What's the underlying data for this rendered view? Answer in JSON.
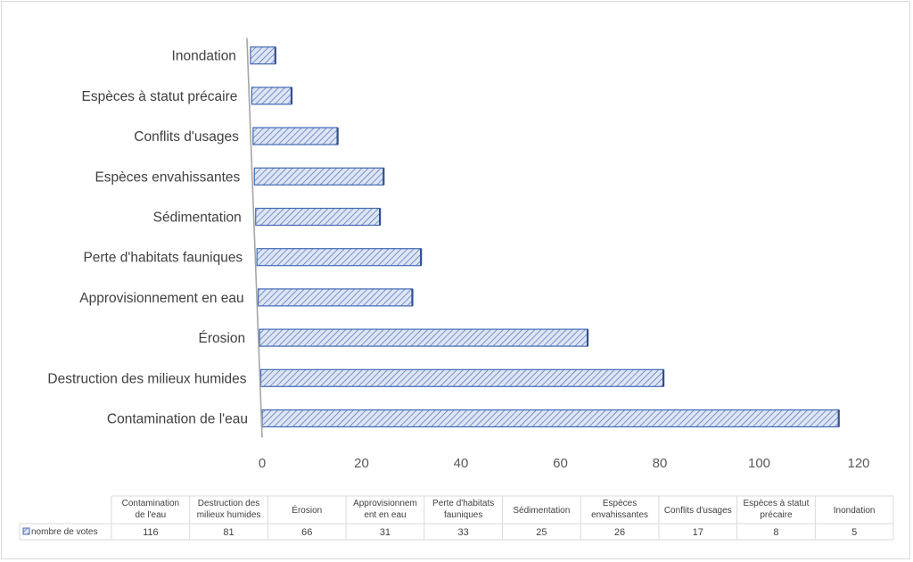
{
  "chart_data": {
    "type": "bar",
    "orientation": "horizontal",
    "categories": [
      "Contamination de l'eau",
      "Destruction des milieux humides",
      "Érosion",
      "Approvisionnement en eau",
      "Perte d'habitats fauniques",
      "Sédimentation",
      "Espèces envahissantes",
      "Conflits d'usages",
      "Espèces à statut précaire",
      "Inondation"
    ],
    "series": [
      {
        "name": "nombre de votes",
        "values": [
          116,
          81,
          66,
          31,
          33,
          25,
          26,
          17,
          8,
          5
        ]
      }
    ],
    "xlim": [
      0,
      120
    ],
    "xticks": [
      0,
      20,
      40,
      60,
      80,
      100,
      120
    ],
    "data_table": {
      "headers": [
        [
          "Contamination",
          "de l'eau"
        ],
        [
          "Destruction des",
          "milieux humides"
        ],
        [
          "Érosion"
        ],
        [
          "Approvisionnem",
          "ent en eau"
        ],
        [
          "Perte d'habitats",
          "fauniques"
        ],
        [
          "Sédimentation"
        ],
        [
          "Espèces",
          "envahissantes"
        ],
        [
          "Conflits d'usages"
        ],
        [
          "Espèces à statut",
          "précaire"
        ],
        [
          "Inondation"
        ]
      ],
      "row_label": "nombre de votes"
    },
    "grid": false,
    "legend": "data-table",
    "colors": {
      "bar_fill": "#dbe3f4",
      "bar_hatch": "#4f6fb8",
      "bar_edge": "#4169b4",
      "axis": "#a6a6a6",
      "table_border": "#d9d9d9"
    }
  }
}
